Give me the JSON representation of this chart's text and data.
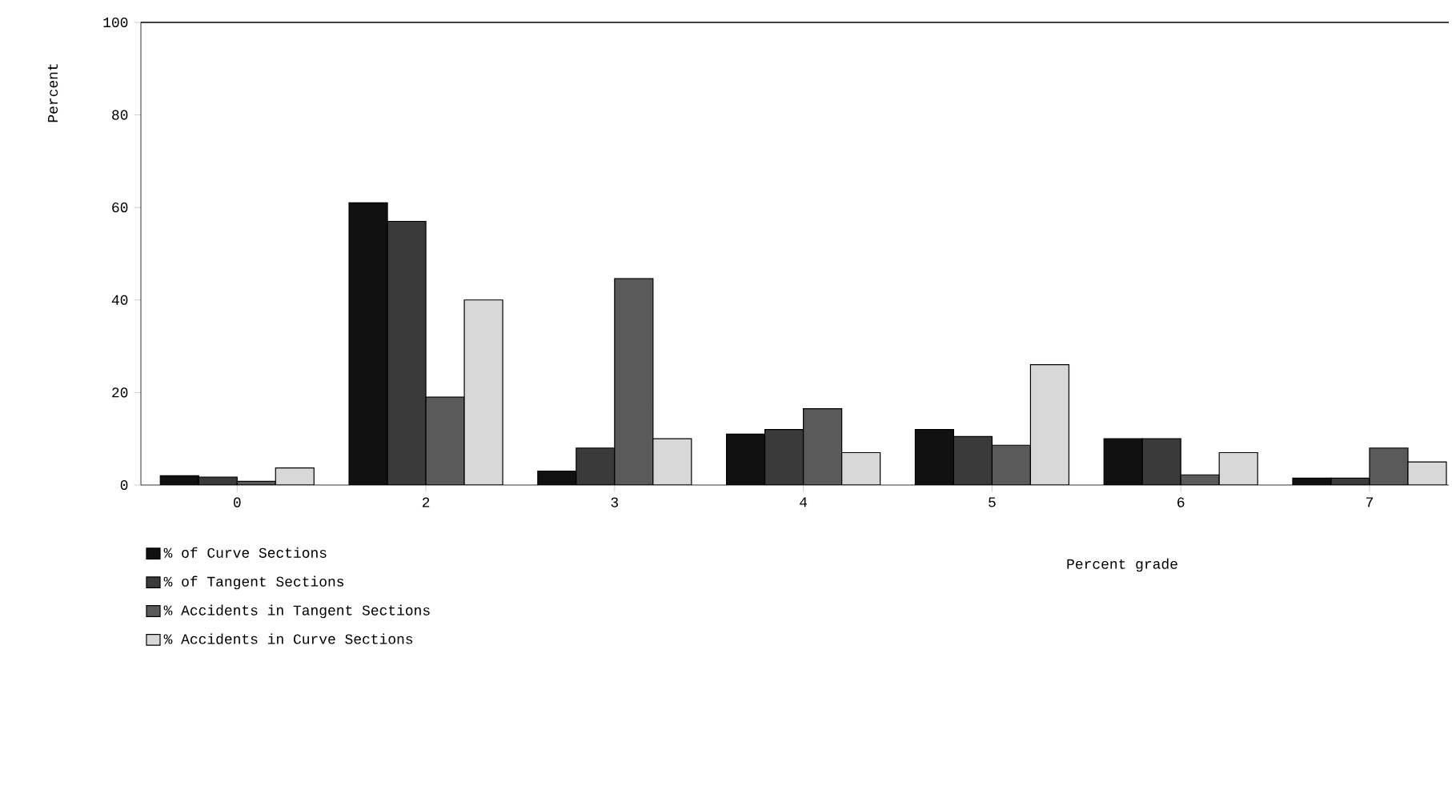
{
  "chart_data": {
    "type": "bar",
    "xlabel": "Percent grade",
    "ylabel": "Percent",
    "categories": [
      "0",
      "2",
      "3",
      "4",
      "5",
      "6",
      "7"
    ],
    "series": [
      {
        "name": "% of Curve Sections",
        "color": "#111111",
        "values": [
          2,
          61,
          3,
          11,
          12,
          10,
          1.5
        ]
      },
      {
        "name": "% of Tangent Sections",
        "color": "#3a3a3a",
        "values": [
          1.7,
          57,
          8,
          12,
          10.5,
          10,
          1.5
        ]
      },
      {
        "name": "% Accidents in Tangent Sections",
        "color": "#5a5a5a",
        "values": [
          0.8,
          19,
          44.6,
          16.5,
          8.6,
          2.2,
          8
        ]
      },
      {
        "name": "% Accidents in Curve Sections",
        "color": "#d8d8d8",
        "values": [
          3.7,
          40,
          10,
          7,
          26,
          7,
          5
        ]
      }
    ],
    "ylim": [
      0,
      100
    ],
    "yticks": [
      0,
      20,
      40,
      60,
      80,
      100
    ],
    "grid": false,
    "legend": "bottom left"
  }
}
